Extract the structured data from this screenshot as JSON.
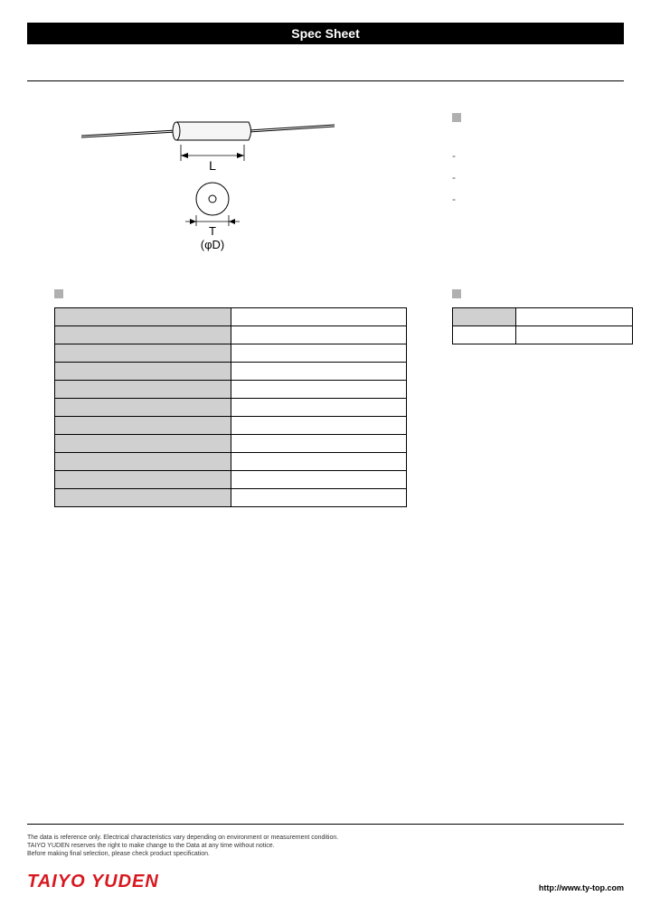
{
  "header": {
    "title": "Spec Sheet"
  },
  "diagram": {
    "label_L": "L",
    "label_T": "T",
    "label_D": "(φD)"
  },
  "spec_table": {
    "rows": [
      {
        "label": "",
        "value": ""
      },
      {
        "label": "",
        "value": ""
      },
      {
        "label": "",
        "value": ""
      },
      {
        "label": "",
        "value": ""
      },
      {
        "label": "",
        "value": ""
      },
      {
        "label": "",
        "value": ""
      },
      {
        "label": "",
        "value": ""
      },
      {
        "label": "",
        "value": ""
      },
      {
        "label": "",
        "value": ""
      },
      {
        "label": "",
        "value": ""
      },
      {
        "label": "",
        "value": ""
      }
    ],
    "label_bg": "#d0d0d0",
    "border_color": "#000000"
  },
  "right_table": {
    "rows": [
      {
        "label": "",
        "value": ""
      },
      {
        "label": "",
        "value": ""
      }
    ],
    "label_bg": "#d0d0d0"
  },
  "footer": {
    "disclaimer_line1": "The data is reference only. Electrical characteristics vary depending on environment or measurement condition.",
    "disclaimer_line2": "TAIYO YUDEN reserves the right to make change to the Data at any time without notice.",
    "disclaimer_line3": "Before making final selection, please check product specification.",
    "brand": "TAIYO YUDEN",
    "url": "http://www.ty-top.com"
  },
  "colors": {
    "black": "#000000",
    "white": "#ffffff",
    "grey_fill": "#d0d0d0",
    "grey_sq": "#b0b0b0",
    "brand_red": "#d8181f"
  }
}
